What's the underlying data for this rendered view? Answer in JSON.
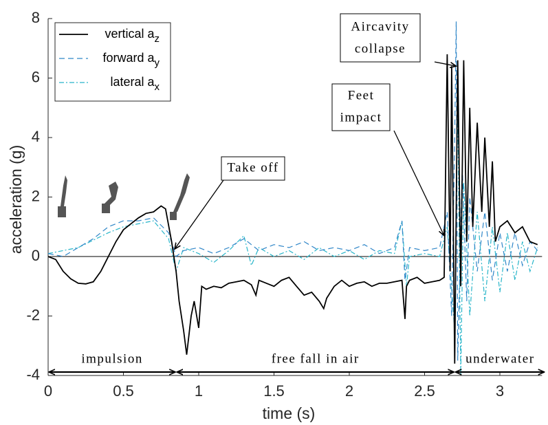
{
  "chart_data": {
    "type": "line",
    "xlabel": "time (s)",
    "ylabel": "acceleration (g)",
    "xlim": [
      0,
      3.28
    ],
    "ylim": [
      -4,
      8
    ],
    "xticks": [
      0,
      0.5,
      1,
      1.5,
      2,
      2.5,
      3
    ],
    "yticks": [
      -4,
      -2,
      0,
      2,
      4,
      6,
      8
    ],
    "legend": "upper left",
    "series": [
      {
        "name": "vertical a",
        "subscript": "z",
        "color": "#000000",
        "style": "solid",
        "x": [
          0,
          0.05,
          0.1,
          0.15,
          0.2,
          0.25,
          0.3,
          0.35,
          0.4,
          0.45,
          0.5,
          0.55,
          0.6,
          0.65,
          0.7,
          0.75,
          0.78,
          0.82,
          0.85,
          0.87,
          0.9,
          0.92,
          0.95,
          0.97,
          1.0,
          1.02,
          1.05,
          1.1,
          1.15,
          1.2,
          1.25,
          1.3,
          1.35,
          1.38,
          1.4,
          1.45,
          1.5,
          1.55,
          1.6,
          1.65,
          1.7,
          1.75,
          1.8,
          1.83,
          1.85,
          1.9,
          1.95,
          2.0,
          2.05,
          2.1,
          2.15,
          2.2,
          2.25,
          2.3,
          2.35,
          2.37,
          2.38,
          2.4,
          2.45,
          2.5,
          2.55,
          2.6,
          2.63,
          2.65,
          2.67,
          2.68,
          2.7,
          2.72,
          2.74,
          2.76,
          2.78,
          2.8,
          2.82,
          2.85,
          2.88,
          2.9,
          2.93,
          2.95,
          2.97,
          3.0,
          3.05,
          3.1,
          3.15,
          3.2,
          3.25
        ],
        "values": [
          0,
          -0.1,
          -0.5,
          -0.75,
          -0.9,
          -0.92,
          -0.85,
          -0.5,
          0,
          0.5,
          0.9,
          1.1,
          1.3,
          1.45,
          1.5,
          1.7,
          1.6,
          0.5,
          -0.5,
          -1.5,
          -2.5,
          -3.3,
          -2,
          -1.5,
          -2.4,
          -1,
          -1.1,
          -1,
          -1.05,
          -0.9,
          -0.85,
          -0.8,
          -0.95,
          -1.3,
          -0.8,
          -0.9,
          -1,
          -0.8,
          -0.7,
          -1,
          -1.3,
          -1.2,
          -1.5,
          -1.75,
          -1.4,
          -1,
          -0.8,
          -1,
          -0.9,
          -0.85,
          -1,
          -0.9,
          -0.9,
          -0.85,
          -0.8,
          -2.1,
          -1,
          -0.8,
          -0.7,
          -0.9,
          -0.85,
          -0.8,
          -0.7,
          6.8,
          -0.5,
          6.4,
          -3.6,
          6.6,
          -1,
          6.6,
          0.5,
          5,
          1,
          4.5,
          1.5,
          4,
          1,
          3.2,
          0.5,
          1,
          1.2,
          0.8,
          1,
          0.5,
          0.4
        ]
      },
      {
        "name": "forward a",
        "subscript": "y",
        "color": "#2f86c8",
        "style": "dashed",
        "x": [
          0,
          0.1,
          0.2,
          0.3,
          0.4,
          0.5,
          0.6,
          0.7,
          0.8,
          0.85,
          0.9,
          1.0,
          1.1,
          1.2,
          1.3,
          1.4,
          1.5,
          1.6,
          1.7,
          1.8,
          1.9,
          2.0,
          2.1,
          2.2,
          2.3,
          2.35,
          2.37,
          2.4,
          2.5,
          2.6,
          2.65,
          2.68,
          2.7,
          2.71,
          2.72,
          2.75,
          2.78,
          2.8,
          2.85,
          2.9,
          2.95,
          3.0,
          3.05,
          3.1,
          3.15,
          3.2,
          3.25
        ],
        "values": [
          0.1,
          0,
          0.3,
          0.6,
          1,
          1.2,
          1.2,
          1.3,
          0.8,
          0,
          0.2,
          0.3,
          0.1,
          0.3,
          0.6,
          0.2,
          0.4,
          0.3,
          0.5,
          0.2,
          0.3,
          0.2,
          0.4,
          0.1,
          0.3,
          1.2,
          -0.8,
          0.3,
          0.2,
          0.3,
          1.5,
          -2,
          4,
          7.9,
          -3.5,
          3,
          -1.5,
          2,
          -0.5,
          1.5,
          -0.8,
          0.8,
          -0.5,
          0.8,
          -0.3,
          0.5,
          0.2
        ]
      },
      {
        "name": "lateral a",
        "subscript": "x",
        "color": "#27b5c9",
        "style": "dashdot",
        "x": [
          0,
          0.2,
          0.4,
          0.5,
          0.6,
          0.7,
          0.8,
          0.85,
          0.9,
          1.0,
          1.1,
          1.2,
          1.3,
          1.35,
          1.4,
          1.5,
          1.6,
          1.7,
          1.8,
          1.9,
          2.0,
          2.1,
          2.2,
          2.3,
          2.35,
          2.38,
          2.4,
          2.5,
          2.6,
          2.65,
          2.7,
          2.72,
          2.74,
          2.76,
          2.8,
          2.85,
          2.9,
          2.95,
          3.0,
          3.05,
          3.1,
          3.15,
          3.2,
          3.25
        ],
        "values": [
          0.1,
          0.3,
          0.8,
          1,
          1.1,
          1.2,
          0.6,
          -0.5,
          0.3,
          0.1,
          -0.2,
          0.2,
          0.7,
          -0.3,
          0.3,
          0,
          0.2,
          -0.1,
          0.3,
          0,
          0.2,
          -0.1,
          0.2,
          0.1,
          1.2,
          -1,
          0,
          0.1,
          0,
          1,
          -2.5,
          5,
          -4,
          2.5,
          -2,
          1.5,
          -1.5,
          1,
          -1.2,
          0.8,
          -0.8,
          0.5,
          -0.5,
          0.3
        ]
      }
    ],
    "annotations": [
      "Take off",
      "Feet",
      "impact",
      "Aircavity",
      "collapse"
    ],
    "phases": [
      {
        "label": "impulsion",
        "start": 0,
        "end": 0.85
      },
      {
        "label": "free fall in air",
        "start": 0.85,
        "end": 2.7
      },
      {
        "label": "underwater",
        "start": 2.7,
        "end": 3.3
      }
    ]
  }
}
